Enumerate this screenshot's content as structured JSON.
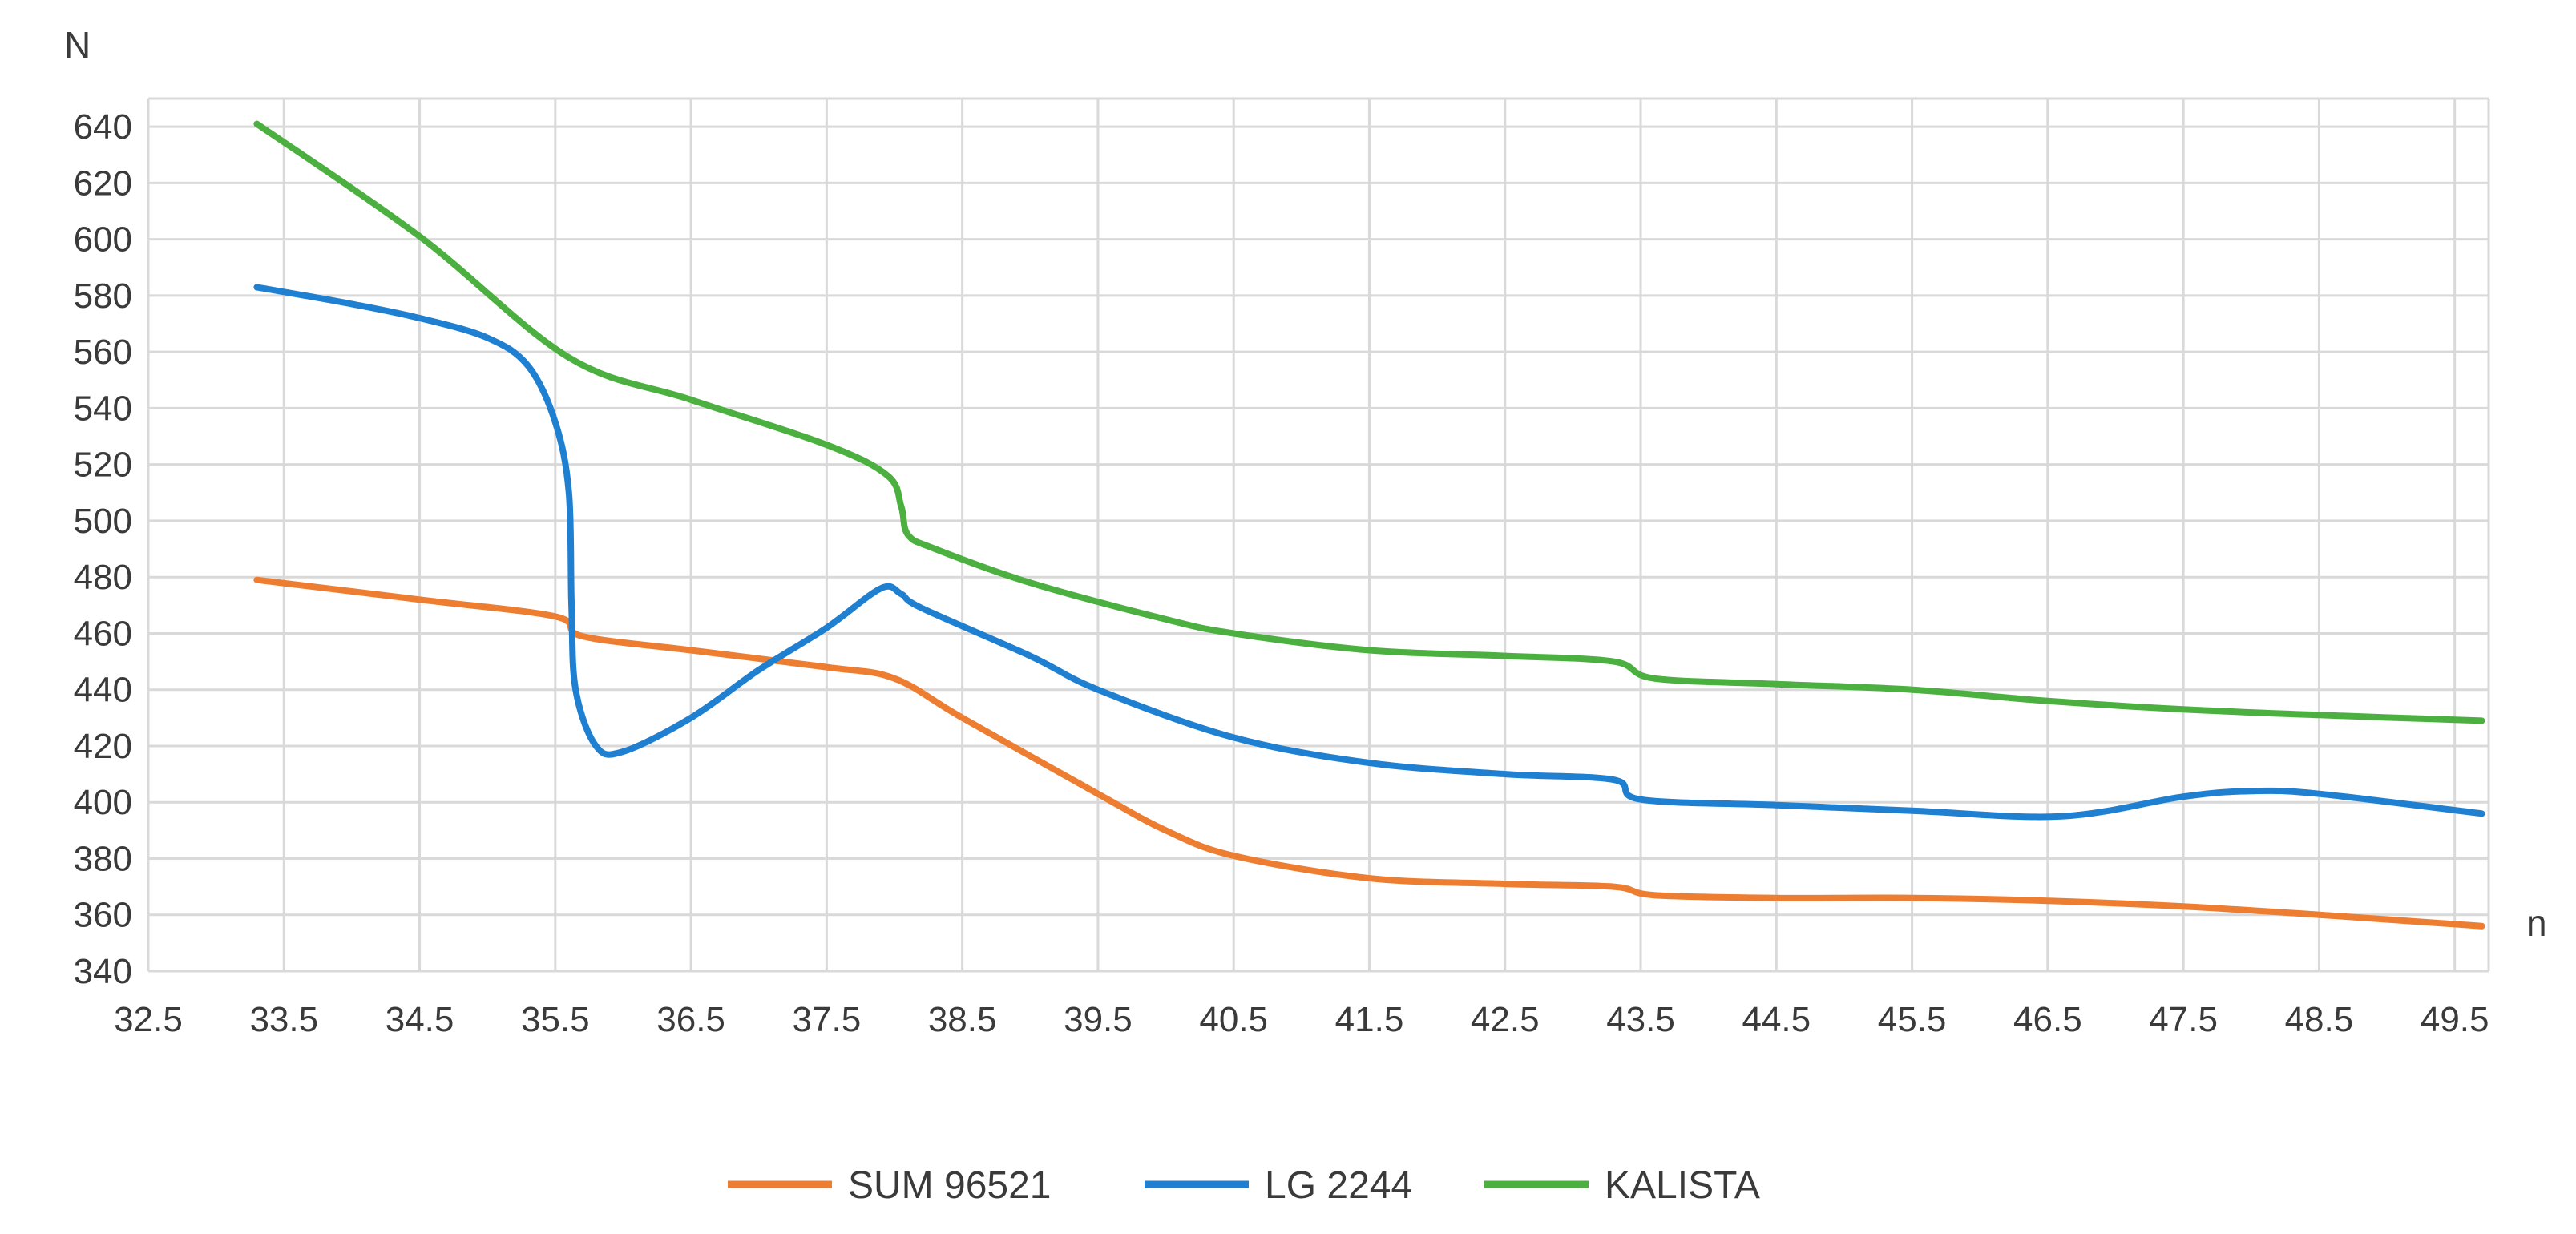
{
  "chart_data": {
    "type": "line",
    "title": "",
    "ylabel": "N",
    "xlabel": "n",
    "xlim": [
      32.5,
      49.75
    ],
    "ylim": [
      340,
      650
    ],
    "x_ticks": [
      "32.5",
      "33.5",
      "34.5",
      "35.5",
      "36.5",
      "37.5",
      "38.5",
      "39.5",
      "40.5",
      "41.5",
      "42.5",
      "43.5",
      "44.5",
      "45.5",
      "46.5",
      "47.5",
      "48.5",
      "49.5"
    ],
    "y_ticks": [
      "340",
      "360",
      "380",
      "400",
      "420",
      "440",
      "460",
      "480",
      "500",
      "520",
      "540",
      "560",
      "580",
      "600",
      "620",
      "640"
    ],
    "grid": true,
    "legend_position": "bottom",
    "series": [
      {
        "name": "SUM 96521",
        "color": "#ED7D31",
        "points": [
          [
            33.3,
            479
          ],
          [
            34.5,
            472
          ],
          [
            35.5,
            466
          ],
          [
            35.7,
            459
          ],
          [
            36.5,
            454
          ],
          [
            37.5,
            448
          ],
          [
            38.0,
            444
          ],
          [
            38.5,
            430
          ],
          [
            39.5,
            403
          ],
          [
            40.0,
            390
          ],
          [
            40.5,
            381
          ],
          [
            41.5,
            373
          ],
          [
            42.5,
            371
          ],
          [
            43.3,
            370
          ],
          [
            43.6,
            367
          ],
          [
            44.5,
            366
          ],
          [
            45.5,
            366
          ],
          [
            46.5,
            365
          ],
          [
            47.5,
            363
          ],
          [
            48.5,
            360
          ],
          [
            49.7,
            356
          ]
        ]
      },
      {
        "name": "LG 2244",
        "color": "#1F7FD0",
        "points": [
          [
            33.3,
            583
          ],
          [
            34.0,
            577
          ],
          [
            34.5,
            572
          ],
          [
            35.0,
            565
          ],
          [
            35.3,
            555
          ],
          [
            35.5,
            535
          ],
          [
            35.6,
            510
          ],
          [
            35.62,
            470
          ],
          [
            35.65,
            440
          ],
          [
            35.8,
            420
          ],
          [
            36.0,
            418
          ],
          [
            36.5,
            430
          ],
          [
            37.0,
            447
          ],
          [
            37.5,
            462
          ],
          [
            37.9,
            476
          ],
          [
            38.05,
            474
          ],
          [
            38.2,
            469
          ],
          [
            39.0,
            452
          ],
          [
            39.5,
            440
          ],
          [
            40.5,
            423
          ],
          [
            41.5,
            414
          ],
          [
            42.5,
            410
          ],
          [
            43.3,
            408
          ],
          [
            43.5,
            401
          ],
          [
            44.5,
            399
          ],
          [
            45.5,
            397
          ],
          [
            46.6,
            395
          ],
          [
            47.5,
            402
          ],
          [
            48.0,
            404
          ],
          [
            48.5,
            403
          ],
          [
            49.7,
            396
          ]
        ]
      },
      {
        "name": "KALISTA",
        "color": "#4CB040",
        "points": [
          [
            33.3,
            641
          ],
          [
            34.5,
            601
          ],
          [
            35.6,
            558
          ],
          [
            36.5,
            543
          ],
          [
            37.5,
            527
          ],
          [
            37.95,
            516
          ],
          [
            38.05,
            505
          ],
          [
            38.1,
            495
          ],
          [
            38.3,
            490
          ],
          [
            39.0,
            478
          ],
          [
            40.0,
            465
          ],
          [
            40.5,
            460
          ],
          [
            41.5,
            454
          ],
          [
            42.5,
            452
          ],
          [
            43.3,
            450
          ],
          [
            43.6,
            444
          ],
          [
            44.5,
            442
          ],
          [
            45.5,
            440
          ],
          [
            46.5,
            436
          ],
          [
            47.5,
            433
          ],
          [
            48.5,
            431
          ],
          [
            49.7,
            429
          ]
        ]
      }
    ]
  }
}
